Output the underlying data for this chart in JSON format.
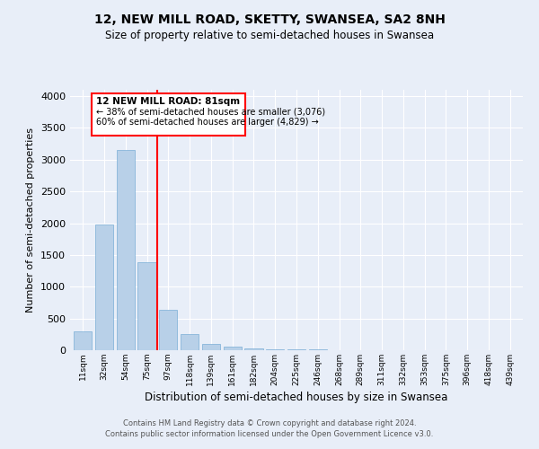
{
  "title": "12, NEW MILL ROAD, SKETTY, SWANSEA, SA2 8NH",
  "subtitle": "Size of property relative to semi-detached houses in Swansea",
  "xlabel": "Distribution of semi-detached houses by size in Swansea",
  "ylabel": "Number of semi-detached properties",
  "categories": [
    "11sqm",
    "32sqm",
    "54sqm",
    "75sqm",
    "97sqm",
    "118sqm",
    "139sqm",
    "161sqm",
    "182sqm",
    "204sqm",
    "225sqm",
    "246sqm",
    "268sqm",
    "289sqm",
    "311sqm",
    "332sqm",
    "353sqm",
    "375sqm",
    "396sqm",
    "418sqm",
    "439sqm"
  ],
  "values": [
    300,
    1980,
    3150,
    1390,
    630,
    260,
    105,
    60,
    35,
    20,
    12,
    8,
    5,
    4,
    3,
    2,
    2,
    1,
    1,
    1,
    1
  ],
  "bar_color": "#b8d0e8",
  "bar_edge_color": "#7aaed6",
  "property_label": "12 NEW MILL ROAD: 81sqm",
  "pct_smaller": 38,
  "n_smaller": 3076,
  "pct_larger": 60,
  "n_larger": 4829,
  "vline_x": 3.5,
  "ylim": [
    0,
    4100
  ],
  "background_color": "#e8eef8",
  "footer_line1": "Contains HM Land Registry data © Crown copyright and database right 2024.",
  "footer_line2": "Contains public sector information licensed under the Open Government Licence v3.0."
}
